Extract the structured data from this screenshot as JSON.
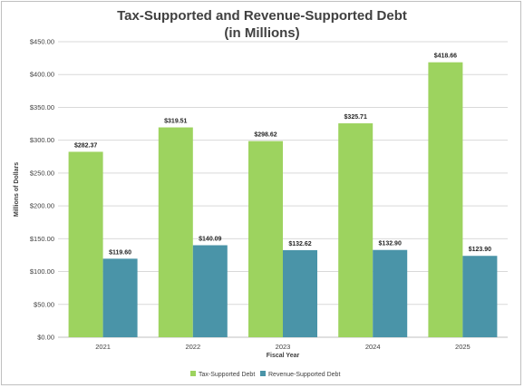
{
  "chart_data": {
    "type": "bar",
    "title": "Tax-Supported and Revenue-Supported Debt",
    "subtitle": "(in Millions)",
    "xlabel": "Fiscal Year",
    "ylabel": "Millions of Dollars",
    "categories": [
      "2021",
      "2022",
      "2023",
      "2024",
      "2025"
    ],
    "series": [
      {
        "name": "Tax-Supported Debt",
        "values": [
          282.37,
          319.51,
          298.62,
          325.71,
          418.66
        ],
        "color": "#9dd35f",
        "labels": [
          "$282.37",
          "$319.51",
          "$298.62",
          "$325.71",
          "$418.66"
        ]
      },
      {
        "name": "Revenue-Supported Debt",
        "values": [
          119.6,
          140.09,
          132.62,
          132.9,
          123.9
        ],
        "color": "#4a94a8",
        "labels": [
          "$119.60",
          "$140.09",
          "$132.62",
          "$132.90",
          "$123.90"
        ]
      }
    ],
    "ylim": [
      0,
      450
    ],
    "ytick_labels": [
      "$0.00",
      "$50.00",
      "$100.00",
      "$150.00",
      "$200.00",
      "$250.00",
      "$300.00",
      "$350.00",
      "$400.00",
      "$450.00"
    ],
    "grid": true,
    "legend": "bottom"
  }
}
